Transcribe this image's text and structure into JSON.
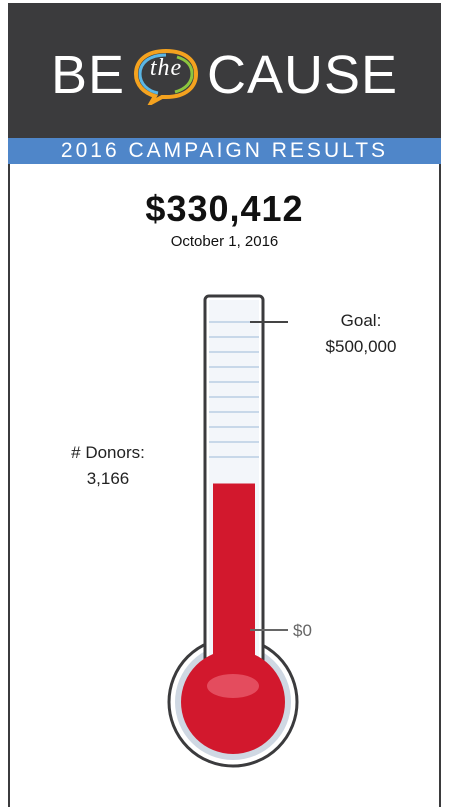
{
  "header": {
    "logo_left": "BE",
    "logo_middle": "the",
    "logo_right": "CAUSE",
    "banner": "2016 CAMPAIGN RESULTS"
  },
  "summary": {
    "amount": "$330,412",
    "date": "October 1, 2016"
  },
  "thermometer": {
    "goal_label": "Goal:",
    "goal_value": "$500,000",
    "zero_label": "$0",
    "raised": 330412,
    "goal": 500000,
    "fill_color": "#d2182d"
  },
  "donors": {
    "label": "# Donors:",
    "value": "3,166"
  },
  "colors": {
    "header_bg": "#3b3b3d",
    "banner_bg": "#4f86c9",
    "mercury": "#d2182d"
  }
}
